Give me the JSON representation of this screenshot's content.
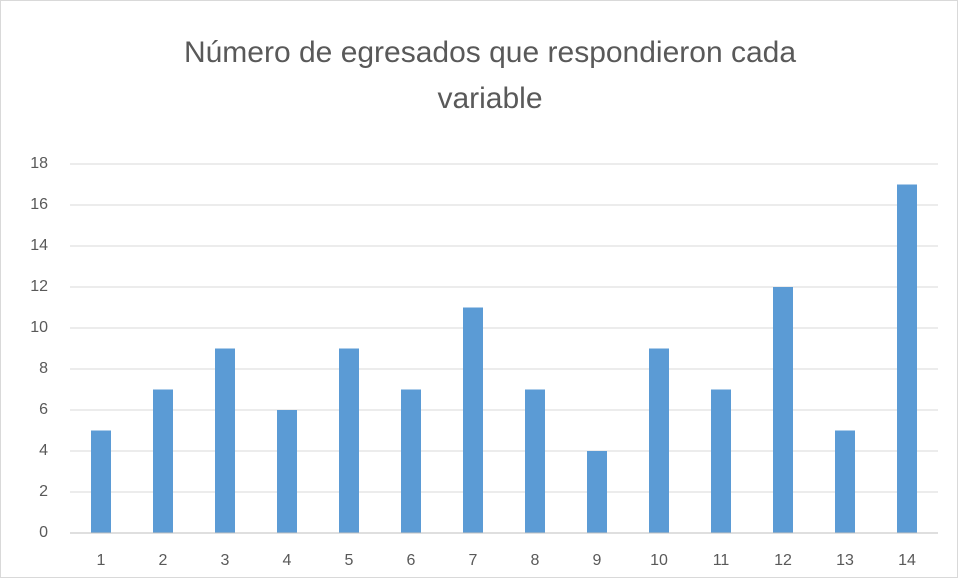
{
  "chart_data": {
    "type": "bar",
    "title": "Número de egresados que respondieron cada variable",
    "categories": [
      "1",
      "2",
      "3",
      "4",
      "5",
      "6",
      "7",
      "8",
      "9",
      "10",
      "11",
      "12",
      "13",
      "14"
    ],
    "values": [
      5,
      7,
      9,
      6,
      9,
      7,
      11,
      7,
      4,
      9,
      7,
      12,
      5,
      17
    ],
    "color": "#5b9bd5",
    "ylim": [
      0,
      18
    ],
    "yticks": [
      0,
      2,
      4,
      6,
      8,
      10,
      12,
      14,
      16,
      18
    ],
    "grid": true
  }
}
